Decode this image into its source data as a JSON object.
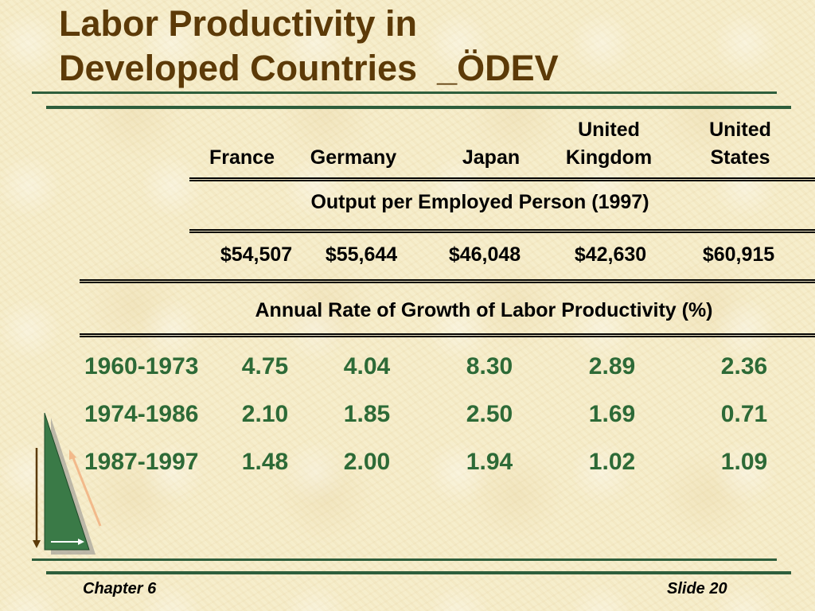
{
  "title": {
    "line1": "Labor Productivity in",
    "line2": "Developed Countries  _ÖDEV"
  },
  "table": {
    "columns": [
      {
        "line1": "",
        "line2": "France"
      },
      {
        "line1": "",
        "line2": "Germany"
      },
      {
        "line1": "",
        "line2": "Japan"
      },
      {
        "line1": "United",
        "line2": "Kingdom"
      },
      {
        "line1": "United",
        "line2": "States"
      }
    ],
    "output_caption": "Output per Employed Person (1997)",
    "output_values": [
      "$54,507",
      "$55,644",
      "$46,048",
      "$42,630",
      "$60,915"
    ],
    "growth_caption": "Annual Rate of Growth of Labor Productivity (%)",
    "rows": [
      {
        "period": "1960-1973",
        "values": [
          "4.75",
          "4.04",
          "8.30",
          "2.89",
          "2.36"
        ]
      },
      {
        "period": "1974-1986",
        "values": [
          "2.10",
          "1.85",
          "2.50",
          "1.69",
          "0.71"
        ]
      },
      {
        "period": "1987-1997",
        "values": [
          "1.48",
          "2.00",
          "1.94",
          "1.02",
          "1.09"
        ]
      }
    ]
  },
  "footer": {
    "chapter": "Chapter 6",
    "slide": "Slide 20"
  },
  "colors": {
    "title": "#5c3a08",
    "rule": "#2e5e3c",
    "values": "#2d6a37",
    "background": "#f6ecc8"
  }
}
